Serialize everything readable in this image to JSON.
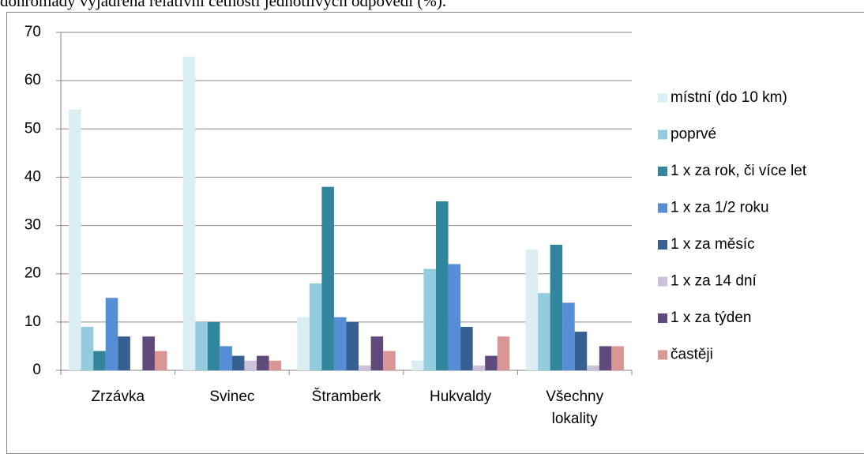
{
  "caption": "dohromady vyjádřená relativní četností jednotlivých odpovědí (%).",
  "chart_data": {
    "type": "bar",
    "categories": [
      "Zrzávka",
      "Svinec",
      "Štramberk",
      "Hukvaldy",
      "Všechny lokality"
    ],
    "series": [
      {
        "name": "místní (do 10 km)",
        "color": "#dbeef4",
        "values": [
          54,
          65,
          11,
          2,
          25
        ]
      },
      {
        "name": "poprvé",
        "color": "#93cddd",
        "values": [
          9,
          10,
          18,
          21,
          16
        ]
      },
      {
        "name": "1 x za rok, či více let",
        "color": "#31859c",
        "values": [
          4,
          10,
          38,
          35,
          26
        ]
      },
      {
        "name": "1 x za 1/2 roku",
        "color": "#558ed5",
        "values": [
          15,
          5,
          11,
          22,
          14
        ]
      },
      {
        "name": "1 x za měsíc",
        "color": "#376092",
        "values": [
          7,
          3,
          10,
          9,
          8
        ]
      },
      {
        "name": "1 x za 14 dní",
        "color": "#ccc1da",
        "values": [
          0,
          2,
          1,
          1,
          1
        ]
      },
      {
        "name": "1 x za týden",
        "color": "#604a7b",
        "values": [
          7,
          3,
          7,
          3,
          5
        ]
      },
      {
        "name": "častěji",
        "color": "#d99694",
        "values": [
          4,
          2,
          4,
          7,
          5
        ]
      }
    ],
    "ylim": [
      0,
      70
    ],
    "yticks": [
      0,
      10,
      20,
      30,
      40,
      50,
      60,
      70
    ],
    "grid": true,
    "legend": "right"
  }
}
